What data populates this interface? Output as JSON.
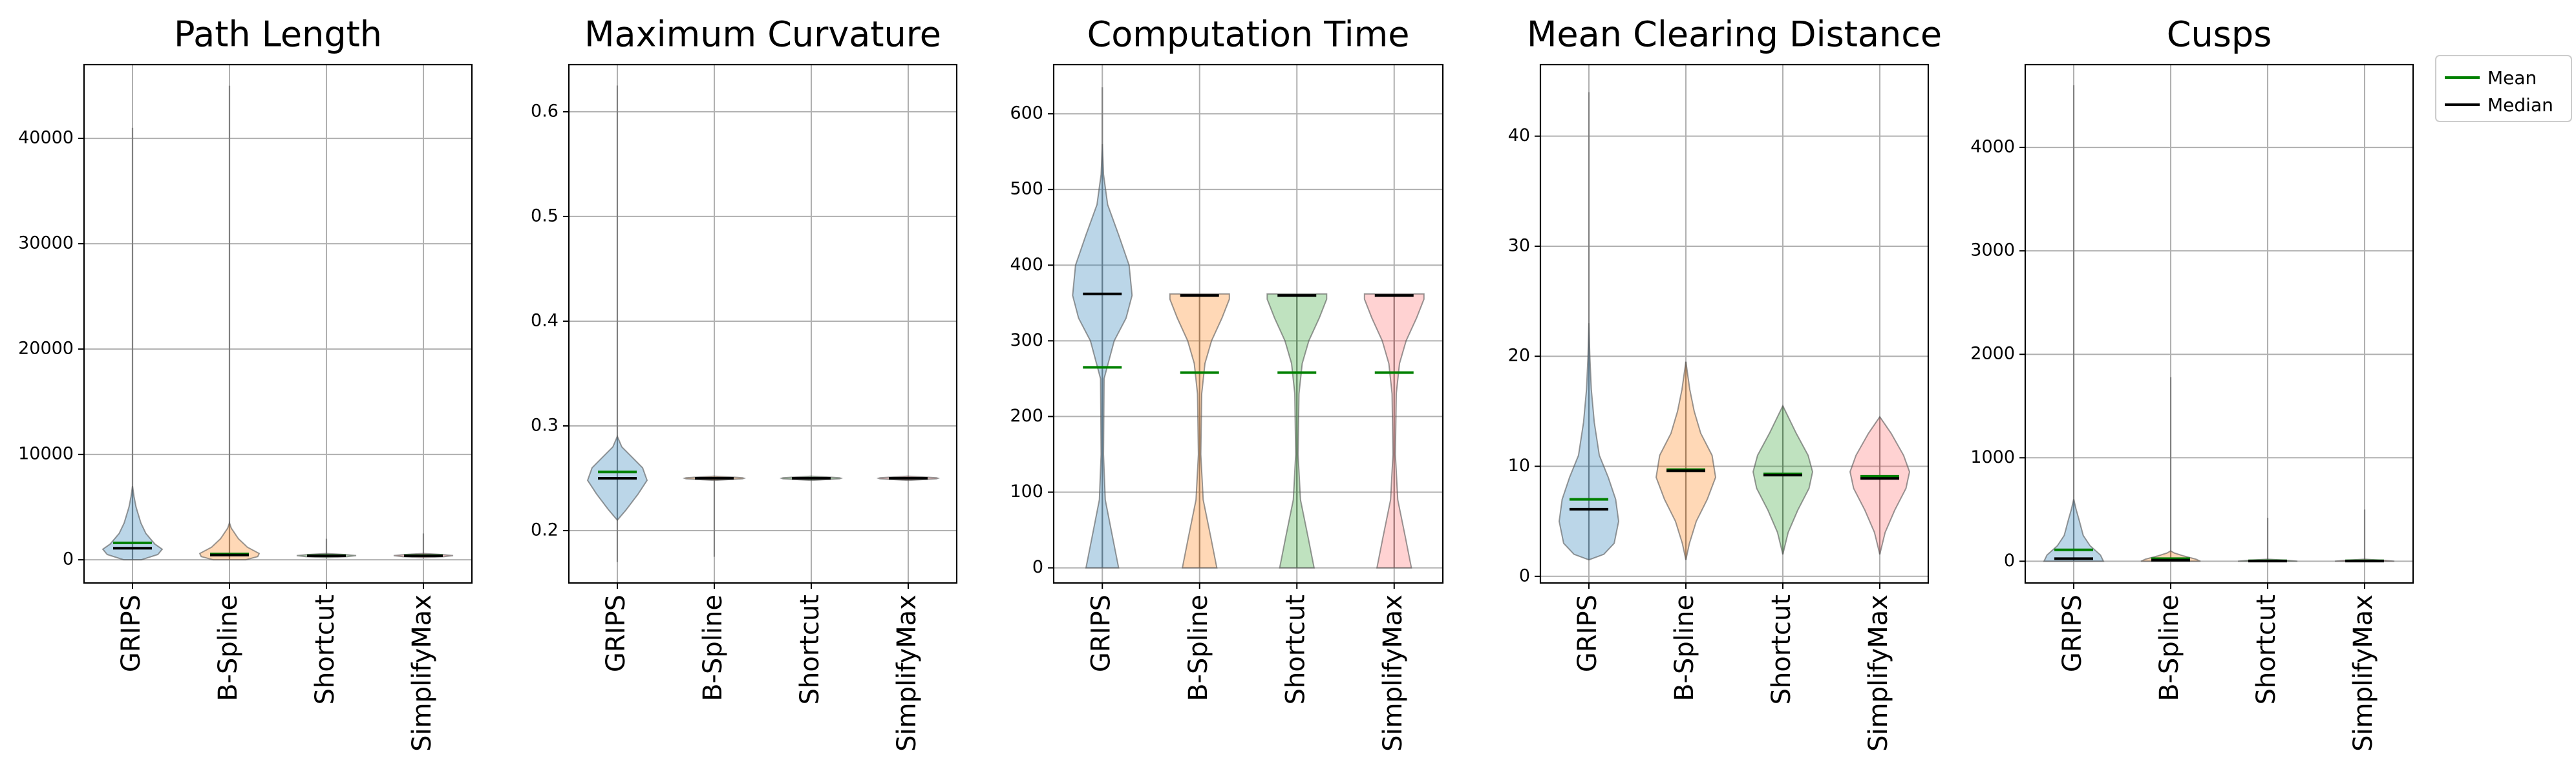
{
  "legend": {
    "placement": "outside-top-right",
    "entries": [
      {
        "name": "Mean",
        "color": "#008000"
      },
      {
        "name": "Median",
        "color": "#000000"
      }
    ]
  },
  "colors": {
    "GRIPS": "#1f77b4",
    "B-Spline": "#ff7f0e",
    "Shortcut": "#2ca02c",
    "SimplifyMax": "#ff6b6b",
    "mean_line": "#008000",
    "median_line": "#000000"
  },
  "chart_data": [
    {
      "type": "violin",
      "title": "Path Length",
      "grid": true,
      "categories": [
        "GRIPS",
        "B-Spline",
        "Shortcut",
        "SimplifyMax"
      ],
      "ylim": [
        -2200,
        47000
      ],
      "yticks": [
        0,
        10000,
        20000,
        30000,
        40000
      ],
      "series": [
        {
          "category": "GRIPS",
          "min": 0,
          "max": 41000,
          "mean": 1600,
          "median": 1100,
          "profile": [
            [
              0,
              0.3
            ],
            [
              500,
              0.85
            ],
            [
              1000,
              1.0
            ],
            [
              1500,
              0.75
            ],
            [
              2500,
              0.45
            ],
            [
              3500,
              0.28
            ],
            [
              5000,
              0.12
            ],
            [
              6000,
              0.05
            ],
            [
              7000,
              0.0
            ]
          ]
        },
        {
          "category": "B-Spline",
          "min": 0,
          "max": 45000,
          "mean": 550,
          "median": 450,
          "profile": [
            [
              0,
              0.55
            ],
            [
              300,
              0.95
            ],
            [
              600,
              1.0
            ],
            [
              1200,
              0.6
            ],
            [
              2000,
              0.3
            ],
            [
              3000,
              0.06
            ],
            [
              3500,
              0.0
            ]
          ]
        },
        {
          "category": "Shortcut",
          "min": 200,
          "max": 2000,
          "mean": 400,
          "median": 380,
          "profile": [
            [
              200,
              0.0
            ],
            [
              300,
              0.7
            ],
            [
              400,
              1.0
            ],
            [
              500,
              0.6
            ],
            [
              600,
              0.0
            ]
          ]
        },
        {
          "category": "SimplifyMax",
          "min": 200,
          "max": 2500,
          "mean": 400,
          "median": 380,
          "profile": [
            [
              200,
              0.0
            ],
            [
              300,
              0.7
            ],
            [
              400,
              1.0
            ],
            [
              500,
              0.6
            ],
            [
              600,
              0.0
            ]
          ]
        }
      ]
    },
    {
      "type": "violin",
      "title": "Maximum Curvature",
      "grid": true,
      "categories": [
        "GRIPS",
        "B-Spline",
        "Shortcut",
        "SimplifyMax"
      ],
      "ylim": [
        0.15,
        0.645
      ],
      "yticks": [
        0.2,
        0.3,
        0.4,
        0.5,
        0.6
      ],
      "series": [
        {
          "category": "GRIPS",
          "min": 0.17,
          "max": 0.625,
          "mean": 0.256,
          "median": 0.25,
          "profile": [
            [
              0.21,
              0.0
            ],
            [
              0.22,
              0.3
            ],
            [
              0.235,
              0.7
            ],
            [
              0.248,
              1.0
            ],
            [
              0.26,
              0.85
            ],
            [
              0.27,
              0.5
            ],
            [
              0.28,
              0.15
            ],
            [
              0.29,
              0.0
            ]
          ]
        },
        {
          "category": "B-Spline",
          "min": 0.175,
          "max": 0.252,
          "mean": 0.25,
          "median": 0.25,
          "profile": [
            [
              0.248,
              0.0
            ],
            [
              0.2495,
              0.95
            ],
            [
              0.25,
              1.0
            ],
            [
              0.2505,
              0.95
            ],
            [
              0.252,
              0.0
            ]
          ]
        },
        {
          "category": "Shortcut",
          "min": 0.248,
          "max": 0.252,
          "mean": 0.25,
          "median": 0.25,
          "profile": [
            [
              0.248,
              0.0
            ],
            [
              0.2495,
              0.95
            ],
            [
              0.25,
              1.0
            ],
            [
              0.2505,
              0.95
            ],
            [
              0.252,
              0.0
            ]
          ]
        },
        {
          "category": "SimplifyMax",
          "min": 0.248,
          "max": 0.252,
          "mean": 0.25,
          "median": 0.25,
          "profile": [
            [
              0.248,
              0.0
            ],
            [
              0.2495,
              0.95
            ],
            [
              0.25,
              1.0
            ],
            [
              0.2505,
              0.95
            ],
            [
              0.252,
              0.0
            ]
          ]
        }
      ]
    },
    {
      "type": "violin",
      "title": "Computation Time",
      "grid": true,
      "categories": [
        "GRIPS",
        "B-Spline",
        "Shortcut",
        "SimplifyMax"
      ],
      "ylim": [
        -20,
        665
      ],
      "yticks": [
        0,
        100,
        200,
        300,
        400,
        500,
        600
      ],
      "series": [
        {
          "category": "GRIPS",
          "min": 0,
          "max": 635,
          "mean": 265,
          "median": 362,
          "profile": [
            [
              0,
              0.55
            ],
            [
              40,
              0.35
            ],
            [
              90,
              0.1
            ],
            [
              150,
              0.04
            ],
            [
              250,
              0.06
            ],
            [
              300,
              0.4
            ],
            [
              330,
              0.8
            ],
            [
              360,
              1.0
            ],
            [
              400,
              0.9
            ],
            [
              440,
              0.55
            ],
            [
              480,
              0.18
            ],
            [
              520,
              0.04
            ],
            [
              560,
              0.0
            ]
          ]
        },
        {
          "category": "B-Spline",
          "min": 0,
          "max": 362,
          "mean": 258,
          "median": 360,
          "profile": [
            [
              0,
              0.58
            ],
            [
              40,
              0.38
            ],
            [
              90,
              0.12
            ],
            [
              150,
              0.04
            ],
            [
              230,
              0.07
            ],
            [
              270,
              0.18
            ],
            [
              300,
              0.4
            ],
            [
              330,
              0.75
            ],
            [
              355,
              1.0
            ],
            [
              362,
              1.0
            ]
          ]
        },
        {
          "category": "Shortcut",
          "min": 0,
          "max": 362,
          "mean": 258,
          "median": 360,
          "profile": [
            [
              0,
              0.58
            ],
            [
              40,
              0.38
            ],
            [
              90,
              0.12
            ],
            [
              150,
              0.04
            ],
            [
              230,
              0.07
            ],
            [
              270,
              0.18
            ],
            [
              300,
              0.4
            ],
            [
              330,
              0.75
            ],
            [
              355,
              1.0
            ],
            [
              362,
              1.0
            ]
          ]
        },
        {
          "category": "SimplifyMax",
          "min": 0,
          "max": 362,
          "mean": 258,
          "median": 360,
          "profile": [
            [
              0,
              0.58
            ],
            [
              40,
              0.38
            ],
            [
              90,
              0.12
            ],
            [
              150,
              0.04
            ],
            [
              230,
              0.07
            ],
            [
              270,
              0.18
            ],
            [
              300,
              0.4
            ],
            [
              330,
              0.75
            ],
            [
              355,
              1.0
            ],
            [
              362,
              1.0
            ]
          ]
        }
      ]
    },
    {
      "type": "violin",
      "title": "Mean Clearing Distance",
      "grid": true,
      "categories": [
        "GRIPS",
        "B-Spline",
        "Shortcut",
        "SimplifyMax"
      ],
      "ylim": [
        -0.6,
        46.5
      ],
      "yticks": [
        0,
        10,
        20,
        30,
        40
      ],
      "series": [
        {
          "category": "GRIPS",
          "min": 1.5,
          "max": 44,
          "mean": 7.0,
          "median": 6.1,
          "profile": [
            [
              1.5,
              0.0
            ],
            [
              2,
              0.5
            ],
            [
              3,
              0.85
            ],
            [
              5,
              1.0
            ],
            [
              7,
              0.9
            ],
            [
              9,
              0.65
            ],
            [
              11,
              0.35
            ],
            [
              14,
              0.18
            ],
            [
              17,
              0.08
            ],
            [
              20,
              0.03
            ],
            [
              23,
              0.0
            ]
          ]
        },
        {
          "category": "B-Spline",
          "min": 1.5,
          "max": 19.5,
          "mean": 9.7,
          "median": 9.6,
          "profile": [
            [
              1.5,
              0.0
            ],
            [
              3,
              0.12
            ],
            [
              5,
              0.35
            ],
            [
              7,
              0.72
            ],
            [
              9,
              1.0
            ],
            [
              11,
              0.88
            ],
            [
              13,
              0.5
            ],
            [
              15,
              0.28
            ],
            [
              17,
              0.13
            ],
            [
              19.5,
              0.0
            ]
          ]
        },
        {
          "category": "Shortcut",
          "min": 2,
          "max": 15.5,
          "mean": 9.3,
          "median": 9.2,
          "profile": [
            [
              2,
              0.0
            ],
            [
              4,
              0.18
            ],
            [
              6,
              0.5
            ],
            [
              8,
              0.88
            ],
            [
              9.5,
              1.0
            ],
            [
              11,
              0.85
            ],
            [
              13,
              0.45
            ],
            [
              15.5,
              0.0
            ]
          ]
        },
        {
          "category": "SimplifyMax",
          "min": 2,
          "max": 14.5,
          "mean": 9.1,
          "median": 8.9,
          "profile": [
            [
              2,
              0.0
            ],
            [
              4,
              0.18
            ],
            [
              6,
              0.5
            ],
            [
              8,
              0.88
            ],
            [
              9.5,
              1.0
            ],
            [
              11,
              0.8
            ],
            [
              13,
              0.38
            ],
            [
              14.5,
              0.0
            ]
          ]
        }
      ]
    },
    {
      "type": "violin",
      "title": "Cusps",
      "grid": true,
      "categories": [
        "GRIPS",
        "B-Spline",
        "Shortcut",
        "SimplifyMax"
      ],
      "ylim": [
        -210,
        4800
      ],
      "yticks": [
        0,
        1000,
        2000,
        3000,
        4000
      ],
      "series": [
        {
          "category": "GRIPS",
          "min": 0,
          "max": 4600,
          "mean": 110,
          "median": 25,
          "profile": [
            [
              0,
              1.0
            ],
            [
              60,
              0.9
            ],
            [
              150,
              0.55
            ],
            [
              250,
              0.32
            ],
            [
              400,
              0.18
            ],
            [
              500,
              0.08
            ],
            [
              600,
              0.0
            ]
          ]
        },
        {
          "category": "B-Spline",
          "min": 0,
          "max": 1780,
          "mean": 25,
          "median": 10,
          "profile": [
            [
              0,
              1.0
            ],
            [
              20,
              0.85
            ],
            [
              50,
              0.45
            ],
            [
              80,
              0.12
            ],
            [
              100,
              0.0
            ]
          ]
        },
        {
          "category": "Shortcut",
          "min": 0,
          "max": 420,
          "mean": 4,
          "median": 2,
          "profile": [
            [
              0,
              1.0
            ],
            [
              10,
              0.6
            ],
            [
              20,
              0.0
            ]
          ]
        },
        {
          "category": "SimplifyMax",
          "min": 0,
          "max": 500,
          "mean": 4,
          "median": 2,
          "profile": [
            [
              0,
              1.0
            ],
            [
              10,
              0.6
            ],
            [
              20,
              0.0
            ]
          ]
        }
      ]
    }
  ]
}
